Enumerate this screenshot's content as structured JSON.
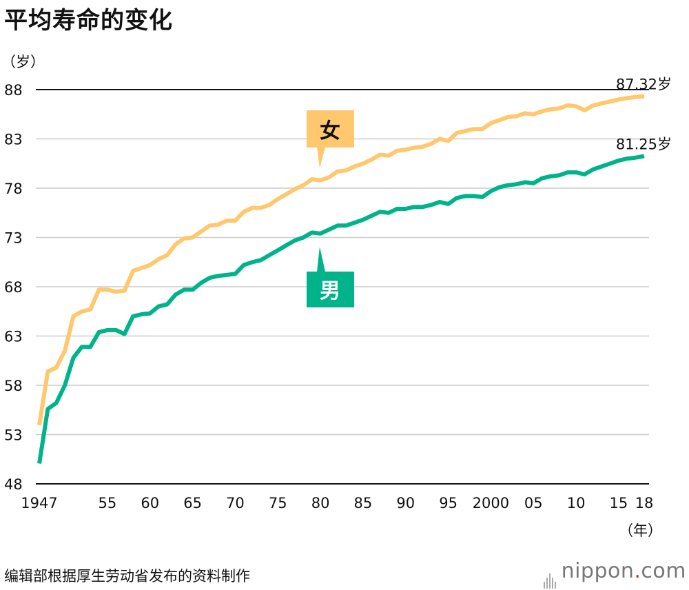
{
  "title": "平均寿命的变化",
  "source_note": "编辑部根据厚生劳动省发布的资料制作",
  "brand": {
    "name": "nippon",
    "dot": ".",
    "tld": "com"
  },
  "chart_data": {
    "type": "line",
    "title": "平均寿命的变化",
    "ylabel": "（岁）",
    "xlabel": "（年）",
    "ylim": [
      48,
      88
    ],
    "xlim": [
      1947,
      2018
    ],
    "yticks": [
      48,
      53,
      58,
      63,
      68,
      73,
      78,
      83,
      88
    ],
    "xticks": [
      {
        "x": 1947,
        "label": "1947"
      },
      {
        "x": 1955,
        "label": "55"
      },
      {
        "x": 1960,
        "label": "60"
      },
      {
        "x": 1965,
        "label": "65"
      },
      {
        "x": 1970,
        "label": "70"
      },
      {
        "x": 1975,
        "label": "75"
      },
      {
        "x": 1980,
        "label": "80"
      },
      {
        "x": 1985,
        "label": "85"
      },
      {
        "x": 1990,
        "label": "90"
      },
      {
        "x": 1995,
        "label": "95"
      },
      {
        "x": 2000,
        "label": "2000"
      },
      {
        "x": 2005,
        "label": "05"
      },
      {
        "x": 2010,
        "label": "10"
      },
      {
        "x": 2015,
        "label": "15"
      },
      {
        "x": 2018,
        "label": "18"
      }
    ],
    "grid": true,
    "series": [
      {
        "name": "女",
        "color": "#FFC86E",
        "end_label": "87.32岁",
        "label_color": "#FFC86E",
        "points": [
          [
            1947,
            53.96
          ],
          [
            1948,
            59.4
          ],
          [
            1949,
            59.8
          ],
          [
            1950,
            61.5
          ],
          [
            1951,
            65.0
          ],
          [
            1952,
            65.5
          ],
          [
            1953,
            65.7
          ],
          [
            1954,
            67.7
          ],
          [
            1955,
            67.7
          ],
          [
            1956,
            67.5
          ],
          [
            1957,
            67.6
          ],
          [
            1958,
            69.6
          ],
          [
            1959,
            69.9
          ],
          [
            1960,
            70.2
          ],
          [
            1961,
            70.8
          ],
          [
            1962,
            71.2
          ],
          [
            1963,
            72.3
          ],
          [
            1964,
            72.9
          ],
          [
            1965,
            73.0
          ],
          [
            1966,
            73.6
          ],
          [
            1967,
            74.2
          ],
          [
            1968,
            74.3
          ],
          [
            1969,
            74.7
          ],
          [
            1970,
            74.7
          ],
          [
            1971,
            75.6
          ],
          [
            1972,
            76.0
          ],
          [
            1973,
            76.0
          ],
          [
            1974,
            76.3
          ],
          [
            1975,
            76.9
          ],
          [
            1976,
            77.4
          ],
          [
            1977,
            77.9
          ],
          [
            1978,
            78.3
          ],
          [
            1979,
            78.9
          ],
          [
            1980,
            78.8
          ],
          [
            1981,
            79.1
          ],
          [
            1982,
            79.7
          ],
          [
            1983,
            79.8
          ],
          [
            1984,
            80.2
          ],
          [
            1985,
            80.5
          ],
          [
            1986,
            80.9
          ],
          [
            1987,
            81.4
          ],
          [
            1988,
            81.3
          ],
          [
            1989,
            81.8
          ],
          [
            1990,
            81.9
          ],
          [
            1991,
            82.1
          ],
          [
            1992,
            82.2
          ],
          [
            1993,
            82.5
          ],
          [
            1994,
            83.0
          ],
          [
            1995,
            82.8
          ],
          [
            1996,
            83.6
          ],
          [
            1997,
            83.8
          ],
          [
            1998,
            84.0
          ],
          [
            1999,
            84.0
          ],
          [
            2000,
            84.6
          ],
          [
            2001,
            84.9
          ],
          [
            2002,
            85.2
          ],
          [
            2003,
            85.3
          ],
          [
            2004,
            85.6
          ],
          [
            2005,
            85.5
          ],
          [
            2006,
            85.8
          ],
          [
            2007,
            86.0
          ],
          [
            2008,
            86.1
          ],
          [
            2009,
            86.4
          ],
          [
            2010,
            86.3
          ],
          [
            2011,
            85.9
          ],
          [
            2012,
            86.4
          ],
          [
            2013,
            86.6
          ],
          [
            2014,
            86.8
          ],
          [
            2015,
            87.0
          ],
          [
            2016,
            87.14
          ],
          [
            2017,
            87.26
          ],
          [
            2018,
            87.32
          ]
        ]
      },
      {
        "name": "男",
        "color": "#00B38A",
        "end_label": "81.25岁",
        "label_color": "#00B38A",
        "points": [
          [
            1947,
            50.06
          ],
          [
            1948,
            55.6
          ],
          [
            1949,
            56.2
          ],
          [
            1950,
            58.0
          ],
          [
            1951,
            60.8
          ],
          [
            1952,
            61.9
          ],
          [
            1953,
            61.9
          ],
          [
            1954,
            63.4
          ],
          [
            1955,
            63.6
          ],
          [
            1956,
            63.6
          ],
          [
            1957,
            63.2
          ],
          [
            1958,
            65.0
          ],
          [
            1959,
            65.2
          ],
          [
            1960,
            65.3
          ],
          [
            1961,
            66.0
          ],
          [
            1962,
            66.2
          ],
          [
            1963,
            67.2
          ],
          [
            1964,
            67.7
          ],
          [
            1965,
            67.7
          ],
          [
            1966,
            68.4
          ],
          [
            1967,
            68.9
          ],
          [
            1968,
            69.1
          ],
          [
            1969,
            69.2
          ],
          [
            1970,
            69.3
          ],
          [
            1971,
            70.2
          ],
          [
            1972,
            70.5
          ],
          [
            1973,
            70.7
          ],
          [
            1974,
            71.2
          ],
          [
            1975,
            71.7
          ],
          [
            1976,
            72.2
          ],
          [
            1977,
            72.7
          ],
          [
            1978,
            73.0
          ],
          [
            1979,
            73.5
          ],
          [
            1980,
            73.4
          ],
          [
            1981,
            73.8
          ],
          [
            1982,
            74.2
          ],
          [
            1983,
            74.2
          ],
          [
            1984,
            74.5
          ],
          [
            1985,
            74.8
          ],
          [
            1986,
            75.2
          ],
          [
            1987,
            75.6
          ],
          [
            1988,
            75.5
          ],
          [
            1989,
            75.9
          ],
          [
            1990,
            75.9
          ],
          [
            1991,
            76.1
          ],
          [
            1992,
            76.1
          ],
          [
            1993,
            76.3
          ],
          [
            1994,
            76.6
          ],
          [
            1995,
            76.4
          ],
          [
            1996,
            77.0
          ],
          [
            1997,
            77.2
          ],
          [
            1998,
            77.2
          ],
          [
            1999,
            77.1
          ],
          [
            2000,
            77.7
          ],
          [
            2001,
            78.1
          ],
          [
            2002,
            78.3
          ],
          [
            2003,
            78.4
          ],
          [
            2004,
            78.6
          ],
          [
            2005,
            78.5
          ],
          [
            2006,
            79.0
          ],
          [
            2007,
            79.2
          ],
          [
            2008,
            79.3
          ],
          [
            2009,
            79.6
          ],
          [
            2010,
            79.6
          ],
          [
            2011,
            79.4
          ],
          [
            2012,
            79.9
          ],
          [
            2013,
            80.2
          ],
          [
            2014,
            80.5
          ],
          [
            2015,
            80.8
          ],
          [
            2016,
            81.0
          ],
          [
            2017,
            81.1
          ],
          [
            2018,
            81.25
          ]
        ]
      }
    ]
  }
}
